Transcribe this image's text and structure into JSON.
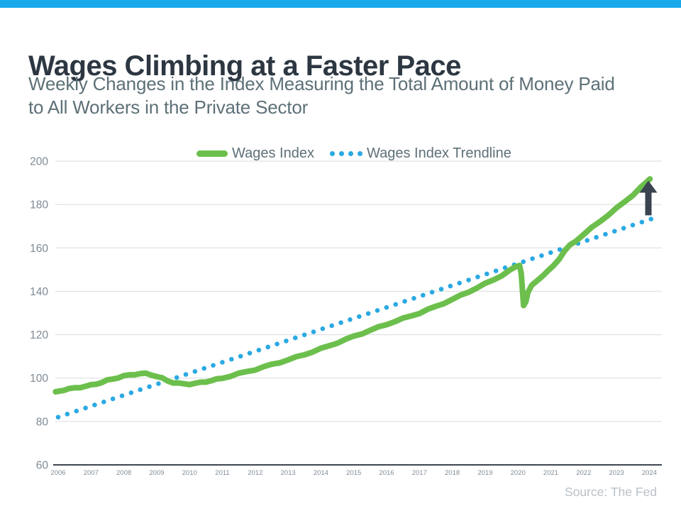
{
  "page": {
    "top_bar_color": "#17a9e9",
    "background": "#ffffff"
  },
  "header": {
    "title": "Wages Climbing at a Faster Pace",
    "subtitle": "Weekly Changes in the Index Measuring the Total Amount of Money Paid\nto All Workers in the Private Sector"
  },
  "legend": {
    "items": [
      {
        "label": "Wages Index",
        "swatch": "solid-line",
        "color": "#6cbf4c"
      },
      {
        "label": "Wages Index Trendline",
        "swatch": "dotted-line",
        "color": "#2aa9e2"
      }
    ]
  },
  "source": {
    "label": "Source: The Fed"
  },
  "chart_data": {
    "type": "line",
    "title": "Wages Climbing at a Faster Pace",
    "subtitle": "Weekly Changes in the Index Measuring the Total Amount of Money Paid to All Workers in the Private Sector",
    "source": "Source: The Fed",
    "xlabel": "",
    "ylabel": "",
    "xlim": [
      2005.9,
      2024.4
    ],
    "ylim": [
      60,
      200
    ],
    "x_ticks": [
      2006,
      2007,
      2008,
      2009,
      2010,
      2011,
      2012,
      2013,
      2014,
      2015,
      2016,
      2017,
      2018,
      2019,
      2020,
      2021,
      2022,
      2023,
      2024
    ],
    "y_ticks": [
      60,
      80,
      100,
      120,
      140,
      160,
      180,
      200
    ],
    "grid": "horizontal-only",
    "legend_position": "top-center",
    "colors": {
      "gridline": "#d8dbdd",
      "axis_line": "#3e4650",
      "y_tick_label": "#7e8a94",
      "x_tick_label": "#828c96",
      "arrow": "#3a4450"
    },
    "series": [
      {
        "name": "Wages Index",
        "style": "solid",
        "color": "#6cbf4c",
        "stroke_width": 8,
        "points": [
          [
            2005.92,
            93.7
          ],
          [
            2006.17,
            94.6
          ],
          [
            2006.33,
            95.0
          ],
          [
            2006.5,
            95.4
          ],
          [
            2006.67,
            95.8
          ],
          [
            2006.83,
            96.2
          ],
          [
            2007.0,
            96.7
          ],
          [
            2007.17,
            97.4
          ],
          [
            2007.33,
            98.1
          ],
          [
            2007.5,
            98.9
          ],
          [
            2007.67,
            99.6
          ],
          [
            2007.83,
            100.3
          ],
          [
            2008.0,
            100.9
          ],
          [
            2008.17,
            101.4
          ],
          [
            2008.33,
            101.8
          ],
          [
            2008.5,
            102.0
          ],
          [
            2008.67,
            102.0
          ],
          [
            2008.83,
            101.6
          ],
          [
            2009.0,
            100.8
          ],
          [
            2009.17,
            99.8
          ],
          [
            2009.33,
            98.8
          ],
          [
            2009.5,
            98.0
          ],
          [
            2009.67,
            97.5
          ],
          [
            2009.83,
            97.3
          ],
          [
            2010.0,
            97.3
          ],
          [
            2010.17,
            97.5
          ],
          [
            2010.33,
            97.9
          ],
          [
            2010.5,
            98.4
          ],
          [
            2010.67,
            98.9
          ],
          [
            2010.83,
            99.4
          ],
          [
            2011.0,
            100.0
          ],
          [
            2011.25,
            101.0
          ],
          [
            2011.5,
            102.0
          ],
          [
            2011.75,
            103.0
          ],
          [
            2012.0,
            104.0
          ],
          [
            2012.25,
            105.1
          ],
          [
            2012.5,
            106.2
          ],
          [
            2012.75,
            107.3
          ],
          [
            2013.0,
            108.4
          ],
          [
            2013.25,
            109.6
          ],
          [
            2013.5,
            110.9
          ],
          [
            2013.75,
            112.2
          ],
          [
            2014.0,
            113.5
          ],
          [
            2014.25,
            114.9
          ],
          [
            2014.5,
            116.3
          ],
          [
            2014.75,
            117.7
          ],
          [
            2015.0,
            119.2
          ],
          [
            2015.25,
            120.6
          ],
          [
            2015.5,
            122.0
          ],
          [
            2015.75,
            123.4
          ],
          [
            2016.0,
            124.8
          ],
          [
            2016.25,
            126.1
          ],
          [
            2016.5,
            127.4
          ],
          [
            2016.75,
            128.7
          ],
          [
            2017.0,
            130.0
          ],
          [
            2017.25,
            131.5
          ],
          [
            2017.5,
            133.0
          ],
          [
            2017.75,
            134.6
          ],
          [
            2018.0,
            136.2
          ],
          [
            2018.25,
            138.0
          ],
          [
            2018.5,
            139.8
          ],
          [
            2018.75,
            141.6
          ],
          [
            2019.0,
            143.4
          ],
          [
            2019.25,
            145.3
          ],
          [
            2019.5,
            147.3
          ],
          [
            2019.75,
            149.5
          ],
          [
            2019.92,
            151.2
          ],
          [
            2020.05,
            152.2
          ],
          [
            2020.1,
            148.0
          ],
          [
            2020.17,
            133.2
          ],
          [
            2020.24,
            135.5
          ],
          [
            2020.3,
            139.5
          ],
          [
            2020.42,
            142.5
          ],
          [
            2020.58,
            145.0
          ],
          [
            2020.75,
            147.2
          ],
          [
            2020.92,
            149.3
          ],
          [
            2021.08,
            151.8
          ],
          [
            2021.25,
            155.0
          ],
          [
            2021.42,
            158.5
          ],
          [
            2021.58,
            161.2
          ],
          [
            2021.75,
            163.2
          ],
          [
            2022.0,
            166.2
          ],
          [
            2022.25,
            169.3
          ],
          [
            2022.5,
            172.3
          ],
          [
            2022.75,
            175.2
          ],
          [
            2023.0,
            178.2
          ],
          [
            2023.25,
            181.3
          ],
          [
            2023.5,
            184.5
          ],
          [
            2023.75,
            188.0
          ],
          [
            2023.9,
            190.0
          ],
          [
            2024.02,
            191.8
          ]
        ]
      },
      {
        "name": "Wages Index Trendline",
        "style": "dotted",
        "color": "#2aa9e2",
        "dot_radius": 3.3,
        "points": [
          [
            2006.0,
            82.0
          ],
          [
            2024.05,
            173.3
          ]
        ]
      }
    ],
    "annotations": [
      {
        "type": "arrow-up",
        "x": 2023.97,
        "value_from": 175,
        "value_to": 191,
        "color": "#3a4450"
      }
    ]
  }
}
